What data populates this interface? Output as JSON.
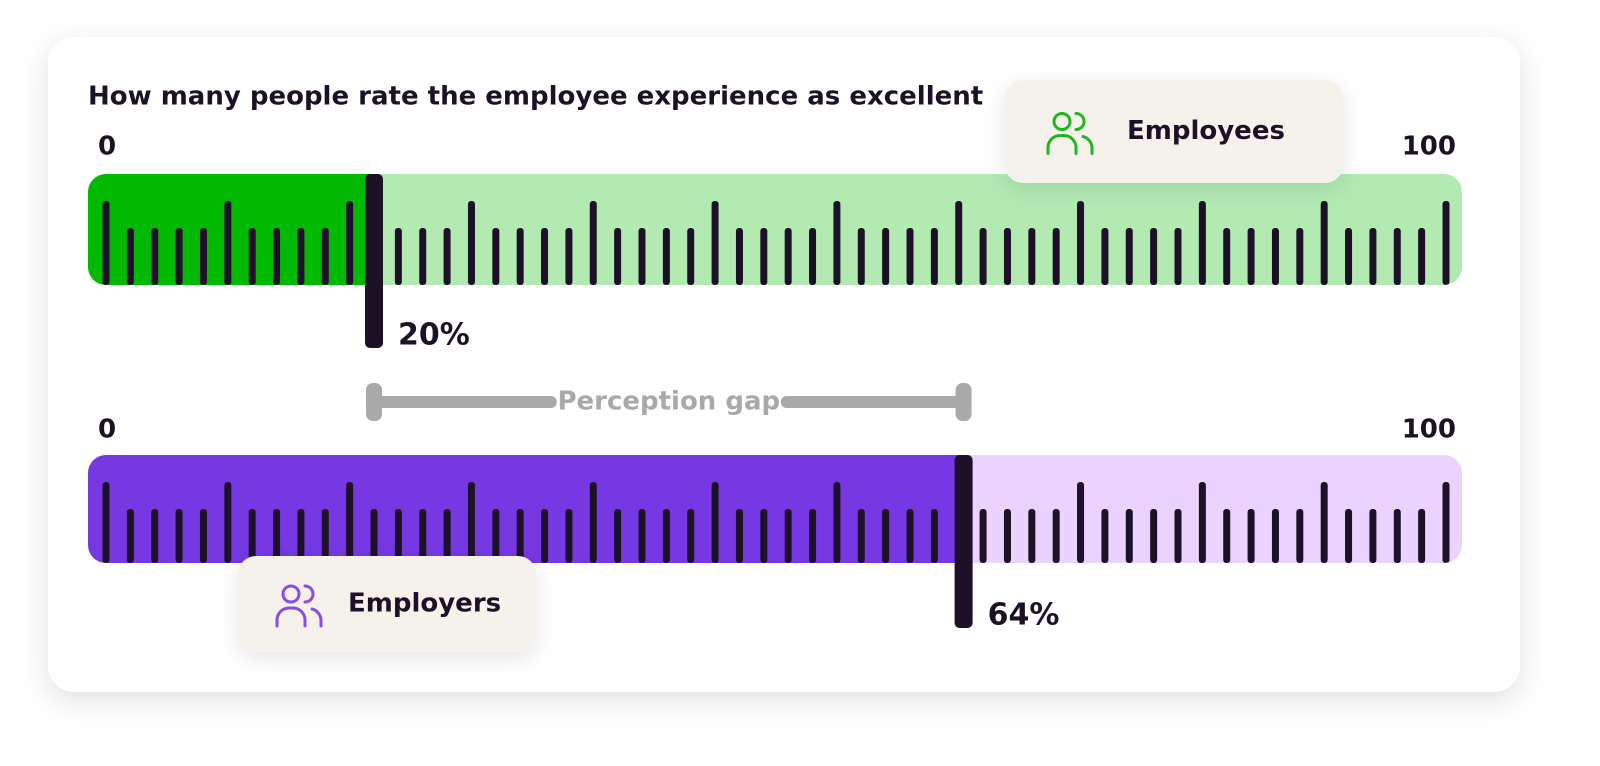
{
  "title": "How many people rate the employee experience as excellent",
  "annotation": "Perception gap",
  "chart_data": [
    {
      "type": "gauge",
      "name": "Employees",
      "values": [
        20
      ],
      "value_labels": [
        "20%"
      ],
      "xlim": [
        0,
        100
      ],
      "xticks": [
        0,
        100
      ],
      "color": "#00b900",
      "track_color": "#b2eab2",
      "icon_color": "#1fb61f",
      "legend": "upper right"
    },
    {
      "type": "gauge",
      "name": "Employers",
      "values": [
        64
      ],
      "value_labels": [
        "64%"
      ],
      "xlim": [
        0,
        100
      ],
      "xticks": [
        0,
        100
      ],
      "color": "#7638e2",
      "track_color": "#ead3ff",
      "icon_color": "#8a4be6",
      "legend": "lower left"
    }
  ]
}
